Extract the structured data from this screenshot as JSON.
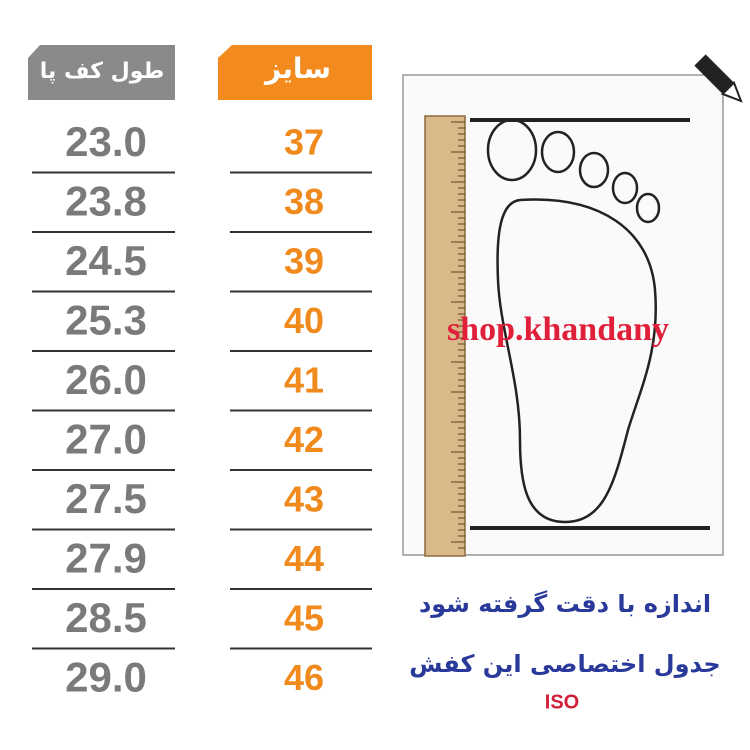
{
  "table": {
    "headers": [
      "طول کف پا",
      "سایز"
    ],
    "rows": [
      [
        "23.0",
        "37"
      ],
      [
        "23.8",
        "38"
      ],
      [
        "24.5",
        "39"
      ],
      [
        "25.3",
        "40"
      ],
      [
        "26.0",
        "41"
      ],
      [
        "27.0",
        "42"
      ],
      [
        "27.5",
        "43"
      ],
      [
        "27.9",
        "44"
      ],
      [
        "28.5",
        "45"
      ],
      [
        "29.0",
        "46"
      ]
    ]
  },
  "watermark": "shop.khandany",
  "notes": [
    "اندازه با دقت گرفته شود",
    "جدول اختصاصی این کفش"
  ],
  "standard": "ISO"
}
